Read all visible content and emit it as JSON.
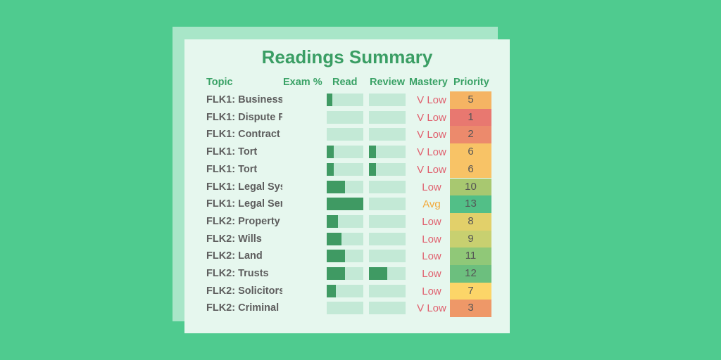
{
  "title": "Readings Summary",
  "headers": {
    "topic": "Topic",
    "exam": "Exam %",
    "read": "Read",
    "review": "Review",
    "mastery": "Mastery",
    "priority": "Priority"
  },
  "colors": {
    "background": "#4fcb8f",
    "title": "#3a9e64",
    "bar_fill": "#3f9a63",
    "bar_track": "#c3e9d6",
    "mastery_low": "#e0606e",
    "mastery_avg": "#f2a93b"
  },
  "rows": [
    {
      "topic": "FLK1: Business",
      "read": 0.15,
      "review": 0,
      "mastery": "V Low",
      "priority": "5",
      "priority_color": "#f5b463"
    },
    {
      "topic": "FLK1: Dispute R",
      "read": 0,
      "review": 0,
      "mastery": "V Low",
      "priority": "1",
      "priority_color": "#e87870"
    },
    {
      "topic": "FLK1: Contract",
      "read": 0,
      "review": 0,
      "mastery": "V Low",
      "priority": "2",
      "priority_color": "#ec8a6c"
    },
    {
      "topic": "FLK1: Tort",
      "read": 0.2,
      "review": 0.2,
      "mastery": "V Low",
      "priority": "6",
      "priority_color": "#f8c366"
    },
    {
      "topic": "FLK1: Tort",
      "read": 0.2,
      "review": 0.2,
      "mastery": "V Low",
      "priority": "6",
      "priority_color": "#f8c366"
    },
    {
      "topic": "FLK1: Legal Sys",
      "read": 0.5,
      "review": 0,
      "mastery": "Low",
      "priority": "10",
      "priority_color": "#a8c870"
    },
    {
      "topic": "FLK1: Legal Ser",
      "read": 1.0,
      "review": 0,
      "mastery": "Avg",
      "priority": "13",
      "priority_color": "#52bf87"
    },
    {
      "topic": "FLK2: Property",
      "read": 0.3,
      "review": 0,
      "mastery": "Low",
      "priority": "8",
      "priority_color": "#e2d06a"
    },
    {
      "topic": "FLK2: Wills",
      "read": 0.4,
      "review": 0,
      "mastery": "Low",
      "priority": "9",
      "priority_color": "#c8d070"
    },
    {
      "topic": "FLK2: Land",
      "read": 0.5,
      "review": 0,
      "mastery": "Low",
      "priority": "11",
      "priority_color": "#90c878"
    },
    {
      "topic": "FLK2: Trusts",
      "read": 0.5,
      "review": 0.5,
      "mastery": "Low",
      "priority": "12",
      "priority_color": "#6cbf7e"
    },
    {
      "topic": "FLK2: Solicitors",
      "read": 0.25,
      "review": 0,
      "mastery": "Low",
      "priority": "7",
      "priority_color": "#fcd568"
    },
    {
      "topic": "FLK2: Criminal",
      "read": 0,
      "review": 0,
      "mastery": "V Low",
      "priority": "3",
      "priority_color": "#ee9868"
    }
  ]
}
